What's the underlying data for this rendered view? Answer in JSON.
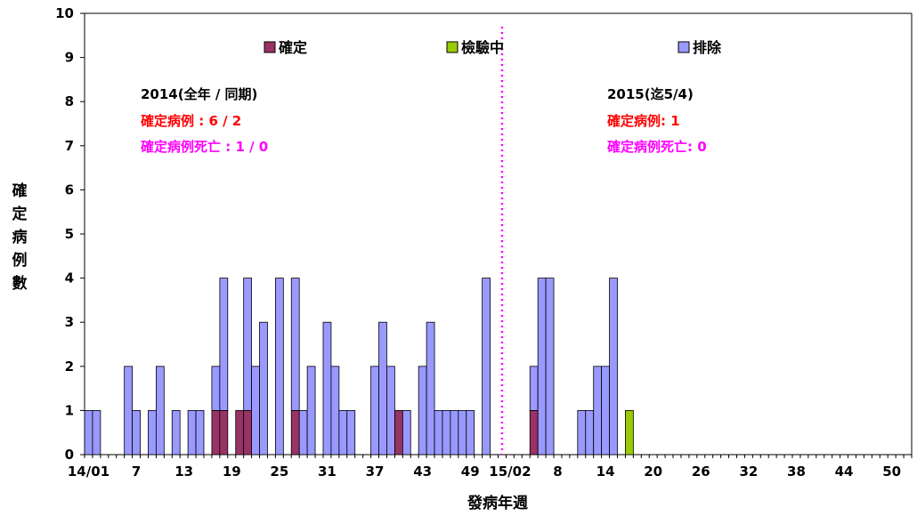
{
  "chart_data": {
    "type": "bar",
    "stacked": true,
    "ylabel": "確定病例數",
    "xlabel": "發病年週",
    "ylim": [
      0,
      10
    ],
    "y_ticks": [
      "0",
      "1",
      "2",
      "3",
      "4",
      "5",
      "6",
      "7",
      "8",
      "9",
      "10"
    ],
    "grid": false,
    "legend_position": "top",
    "x_tick_labels": [
      "14/01",
      "7",
      "13",
      "19",
      "25",
      "31",
      "37",
      "43",
      "49",
      "15/02",
      "8",
      "14",
      "20",
      "26",
      "32",
      "38",
      "44",
      "50"
    ],
    "x_tick_label_week_index": [
      0,
      6,
      12,
      18,
      24,
      30,
      36,
      42,
      48,
      53,
      59,
      65,
      71,
      77,
      83,
      89,
      95,
      101
    ],
    "num_weeks": 104,
    "divider_week_index": 52,
    "series": [
      {
        "name": "確定",
        "color": "#993366",
        "week_values": {
          "16": 1,
          "17": 1,
          "19": 1,
          "20": 1,
          "26": 1,
          "39": 1,
          "56": 1
        }
      },
      {
        "name": "檢驗中",
        "color": "#99cc00",
        "week_values": {
          "68": 1
        }
      },
      {
        "name": "排除",
        "color": "#9999ff",
        "week_values": {
          "0": 1,
          "1": 1,
          "5": 2,
          "6": 1,
          "8": 1,
          "9": 2,
          "11": 1,
          "13": 1,
          "14": 1,
          "16": 1,
          "17": 3,
          "20": 3,
          "21": 2,
          "22": 3,
          "24": 4,
          "26": 3,
          "27": 1,
          "28": 2,
          "30": 3,
          "31": 2,
          "32": 1,
          "33": 1,
          "36": 2,
          "37": 3,
          "38": 2,
          "40": 1,
          "42": 2,
          "43": 3,
          "44": 1,
          "45": 1,
          "46": 1,
          "47": 1,
          "48": 1,
          "50": 4,
          "56": 1,
          "57": 4,
          "58": 4,
          "62": 1,
          "63": 1,
          "64": 2,
          "65": 2,
          "66": 4
        }
      }
    ],
    "annotations": {
      "left": {
        "title": "2014(全年 / 同期)",
        "confirmed": "確定病例 : 6 / 2",
        "deaths": "確定病例死亡 : 1 / 0"
      },
      "right": {
        "title": "2015(迄5/4)",
        "confirmed": "確定病例: 1",
        "deaths": "確定病例死亡: 0"
      }
    },
    "annotation_colors": {
      "red": "#ff0000",
      "magenta": "#ff00ff"
    }
  }
}
